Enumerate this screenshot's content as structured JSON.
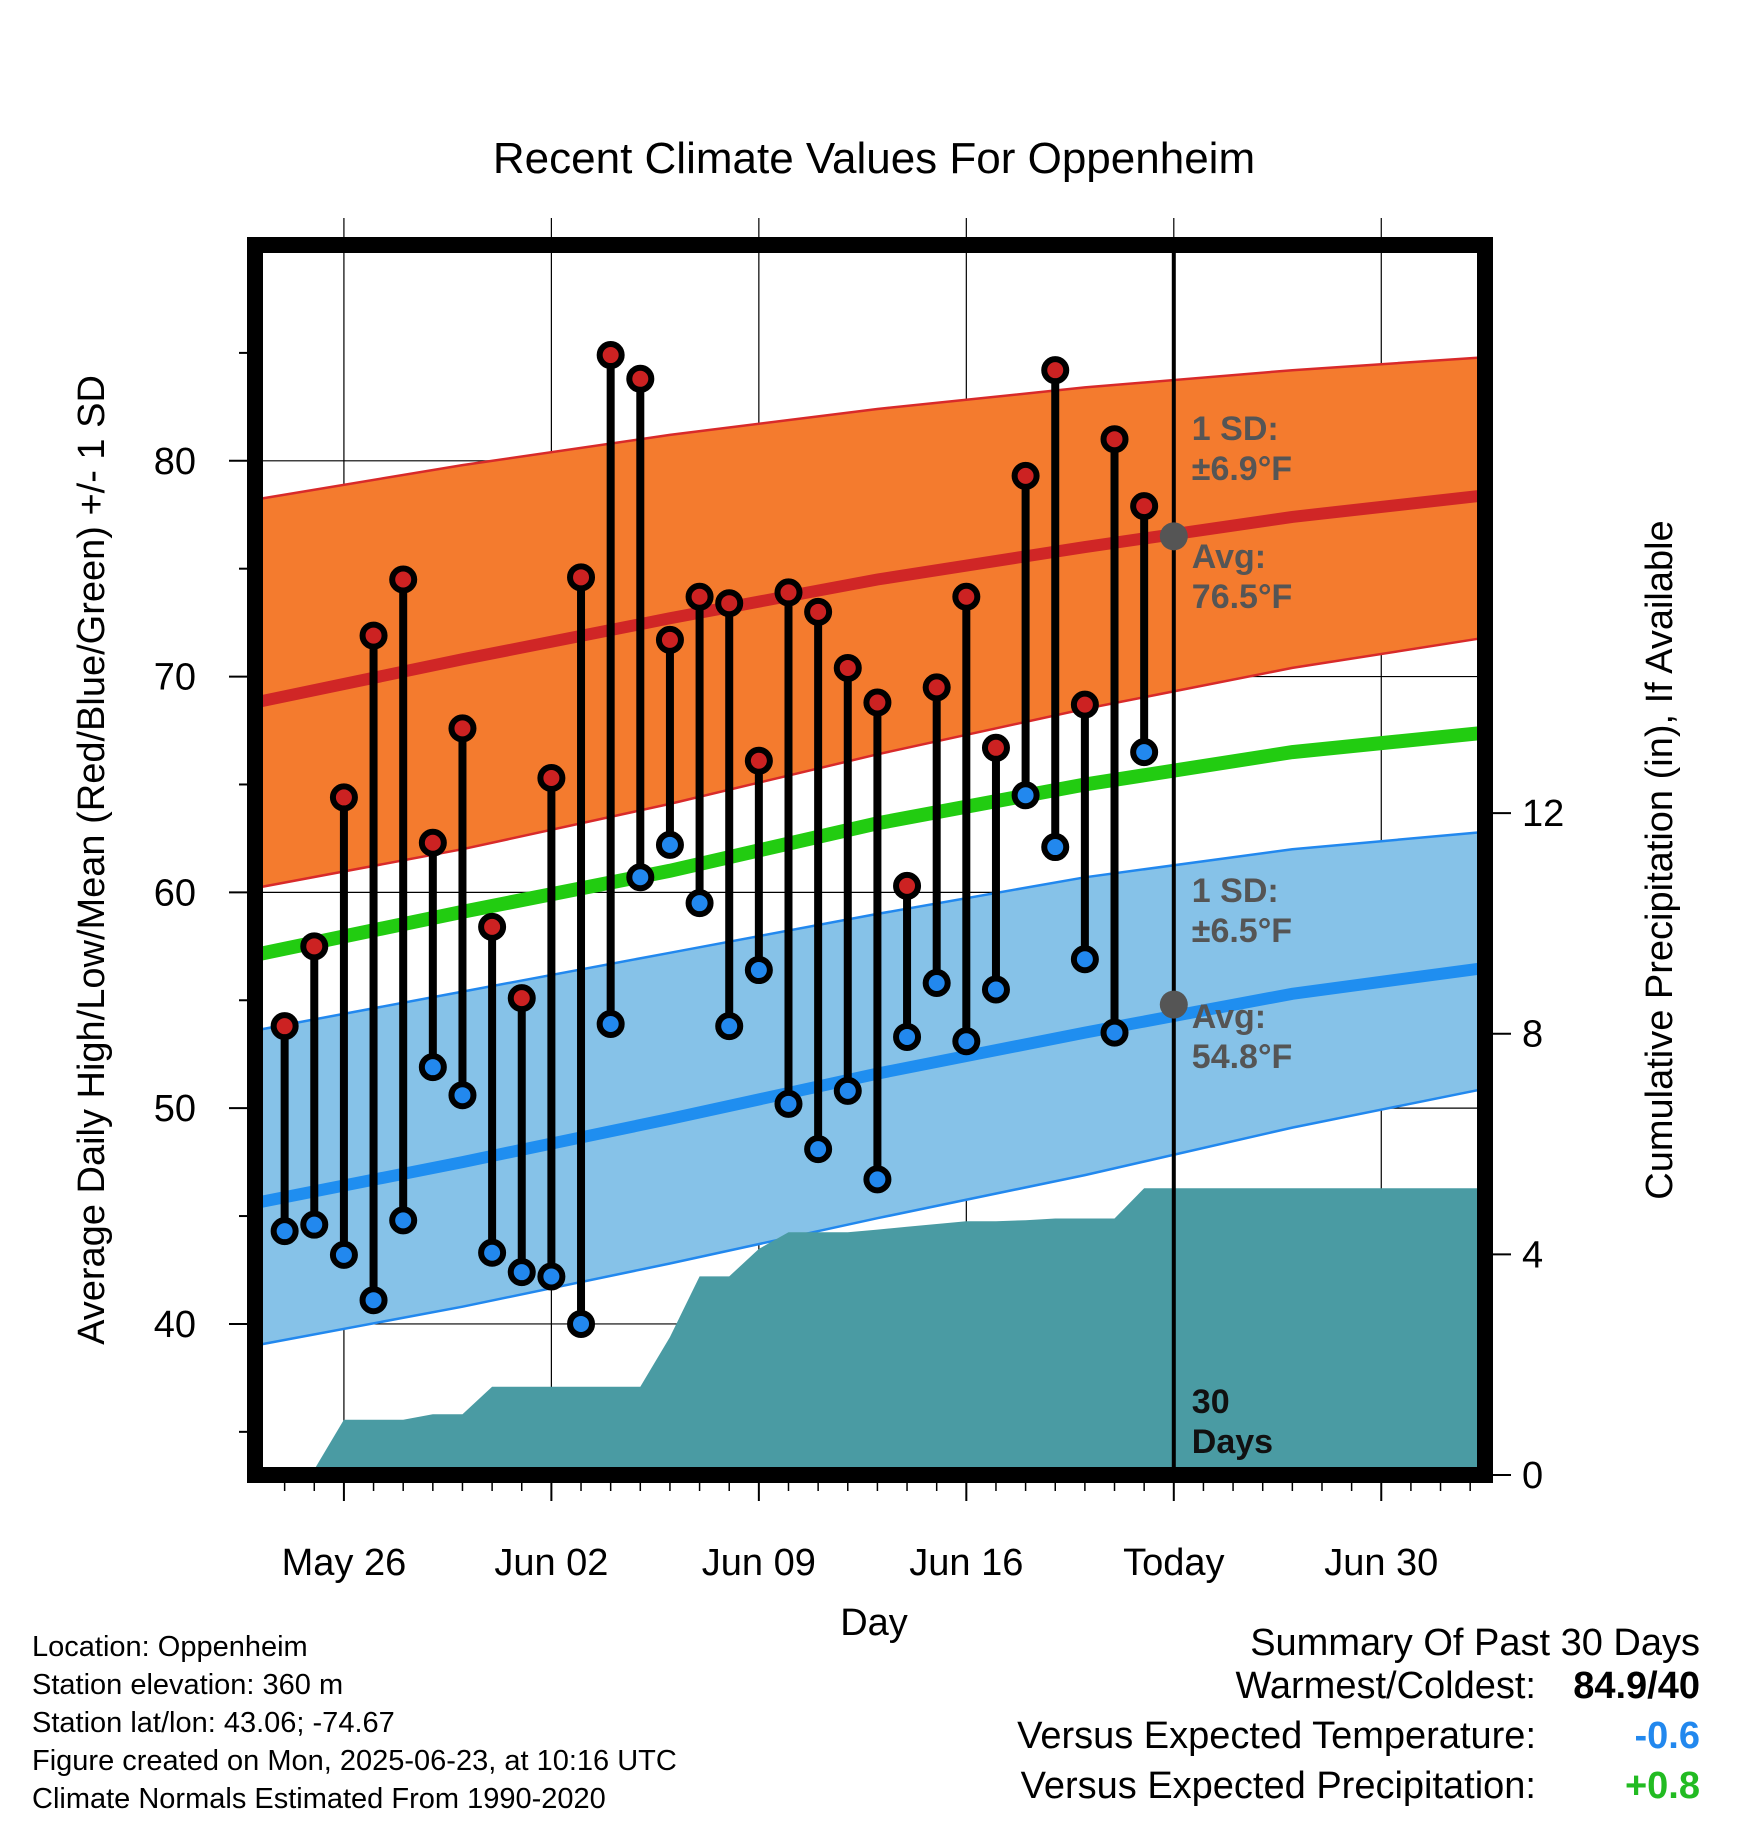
{
  "chart_data": {
    "type": "line",
    "title": "Recent Climate Values For Oppenheim",
    "xlabel": "Day",
    "ylabel": "Average Daily High/Low/Mean (Red/Blue/Green) +/- 1 SD",
    "y2label": "Cumulative Precipitation (in), If Available",
    "x_tick_labels": [
      "May 26",
      "Jun 02",
      "Jun 09",
      "Jun 16",
      "Today",
      "Jun 30"
    ],
    "x_tick_days": [
      3,
      10,
      17,
      24,
      31,
      38
    ],
    "x_range_days": [
      0,
      41.5
    ],
    "today_day": 31,
    "ylim": [
      33,
      90
    ],
    "y_ticks": [
      40,
      50,
      60,
      70,
      80
    ],
    "y2lim": [
      0,
      22.3
    ],
    "y2_ticks": [
      0,
      4,
      8,
      12
    ],
    "grid": true,
    "days": [
      1,
      2,
      3,
      4,
      5,
      6,
      7,
      8,
      9,
      10,
      11,
      12,
      13,
      14,
      15,
      16,
      17,
      18,
      19,
      20,
      21,
      22,
      23,
      24,
      25,
      26,
      27,
      28,
      29,
      30
    ],
    "series": [
      {
        "name": "High",
        "color": "#cc2222",
        "values": [
          53.8,
          57.5,
          64.4,
          71.9,
          74.5,
          62.3,
          67.6,
          58.4,
          55.1,
          65.3,
          74.6,
          84.9,
          83.8,
          71.7,
          73.7,
          73.4,
          66.1,
          73.9,
          73.0,
          70.4,
          68.8,
          60.3,
          69.5,
          73.7,
          66.7,
          79.3,
          84.2,
          68.7,
          81.0,
          77.9
        ]
      },
      {
        "name": "Low",
        "color": "#2288ee",
        "values": [
          44.3,
          44.6,
          43.2,
          41.1,
          44.8,
          51.9,
          50.6,
          43.3,
          42.4,
          42.2,
          40.0,
          53.9,
          60.7,
          62.2,
          59.5,
          53.8,
          56.4,
          50.2,
          48.1,
          50.8,
          46.7,
          53.3,
          55.8,
          53.1,
          55.5,
          64.5,
          62.1,
          56.9,
          53.5,
          66.5
        ]
      }
    ],
    "normals": {
      "x": [
        0,
        7,
        14,
        21,
        28,
        35,
        41.5
      ],
      "high_avg": [
        68.8,
        70.8,
        72.7,
        74.5,
        76.0,
        77.4,
        78.4
      ],
      "high_upper": [
        78.2,
        79.8,
        81.2,
        82.4,
        83.4,
        84.2,
        84.8
      ],
      "high_lower": [
        60.2,
        62.0,
        64.1,
        66.4,
        68.5,
        70.4,
        71.8
      ],
      "mean_avg": [
        57.1,
        59.1,
        61.0,
        63.2,
        65.0,
        66.5,
        67.4
      ],
      "low_avg": [
        45.6,
        47.5,
        49.5,
        51.6,
        53.5,
        55.3,
        56.5
      ],
      "low_upper": [
        53.6,
        55.4,
        57.2,
        59.0,
        60.7,
        62.0,
        62.8
      ],
      "low_lower": [
        39.0,
        40.8,
        42.8,
        44.9,
        46.9,
        49.1,
        50.9
      ]
    },
    "precipitation": {
      "color": "#4a9ba3",
      "days": [
        1,
        2,
        3,
        4,
        5,
        6,
        7,
        8,
        9,
        10,
        11,
        12,
        13,
        14,
        15,
        16,
        17,
        18,
        19,
        20,
        21,
        22,
        23,
        24,
        25,
        26,
        27,
        28,
        29,
        30,
        31,
        41.5
      ],
      "cumulative": [
        0.0,
        0.1,
        1.0,
        1.0,
        1.0,
        1.1,
        1.1,
        1.6,
        1.6,
        1.6,
        1.6,
        1.6,
        1.6,
        2.5,
        3.6,
        3.6,
        4.1,
        4.4,
        4.4,
        4.4,
        4.45,
        4.5,
        4.55,
        4.6,
        4.6,
        4.62,
        4.65,
        4.65,
        4.65,
        5.2,
        5.2,
        5.2
      ]
    },
    "annotations": [
      {
        "text_line1": "1 SD:",
        "text_line2": "±6.9°F"
      },
      {
        "text_line1": "Avg:",
        "text_line2": "76.5°F",
        "value": 76.5
      },
      {
        "text_line1": "1 SD:",
        "text_line2": "±6.5°F"
      },
      {
        "text_line1": "Avg:",
        "text_line2": "54.8°F",
        "value": 54.8
      },
      {
        "text_line1": "30",
        "text_line2": "Days"
      }
    ]
  },
  "meta": {
    "location": "Location: Oppenheim",
    "elevation": "Station elevation: 360 m",
    "latlon": "Station lat/lon: 43.06; -74.67",
    "created": "Figure created on Mon, 2025-06-23, at 10:16 UTC",
    "normals": "Climate Normals Estimated From 1990-2020"
  },
  "summary": {
    "title": "Summary Of Past 30 Days",
    "warmest_label": "Warmest/Coldest:",
    "warmest_value": "84.9/40",
    "temp_label": "Versus Expected Temperature:",
    "temp_value": "-0.6",
    "temp_color": "#2288ee",
    "precip_label": "Versus Expected Precipitation:",
    "precip_value": "+0.8",
    "precip_color": "#22bb22"
  }
}
